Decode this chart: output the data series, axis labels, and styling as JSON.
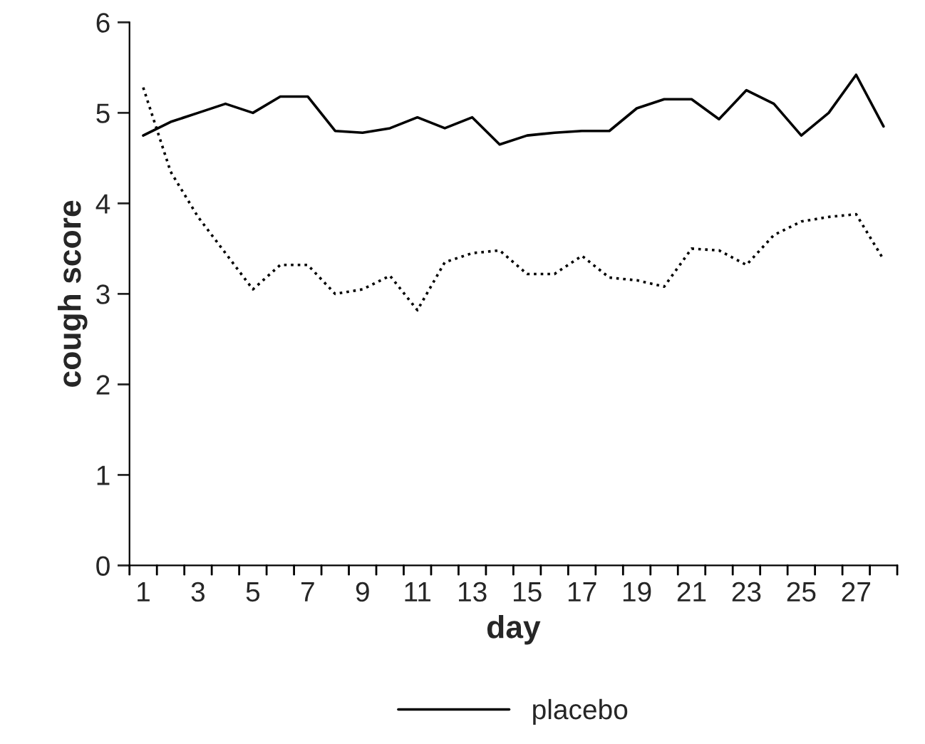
{
  "chart_data": {
    "type": "line",
    "xlabel": "day",
    "ylabel": "cough score",
    "categories": [
      "1",
      null,
      "3",
      null,
      "5",
      null,
      "7",
      null,
      "9",
      null,
      "11",
      null,
      "13",
      null,
      "15",
      null,
      "17",
      null,
      "19",
      null,
      "21",
      null,
      "23",
      null,
      "25",
      null,
      "27",
      null
    ],
    "series": [
      {
        "name": "placebo",
        "color": "#000000",
        "line_style": "solid",
        "values": [
          4.75,
          4.9,
          5.0,
          5.1,
          5.0,
          5.18,
          5.18,
          4.8,
          4.78,
          4.83,
          4.95,
          4.83,
          4.95,
          4.65,
          4.75,
          4.78,
          4.8,
          4.8,
          5.05,
          5.15,
          5.15,
          4.93,
          5.25,
          5.1,
          4.75,
          5.0,
          5.42,
          4.85
        ]
      },
      {
        "color": "#000000",
        "line_style": "dotted",
        "values": [
          5.28,
          4.35,
          3.85,
          3.45,
          3.05,
          3.32,
          3.32,
          3.0,
          3.05,
          3.2,
          2.82,
          3.35,
          3.45,
          3.48,
          3.22,
          3.22,
          3.42,
          3.18,
          3.15,
          3.08,
          3.5,
          3.48,
          3.32,
          3.65,
          3.8,
          3.85,
          3.88,
          3.38
        ]
      }
    ],
    "ylim": [
      0,
      6
    ],
    "yticks": [
      0,
      1,
      2,
      3,
      4,
      5,
      6
    ],
    "grid": false,
    "legend": "bottom"
  }
}
